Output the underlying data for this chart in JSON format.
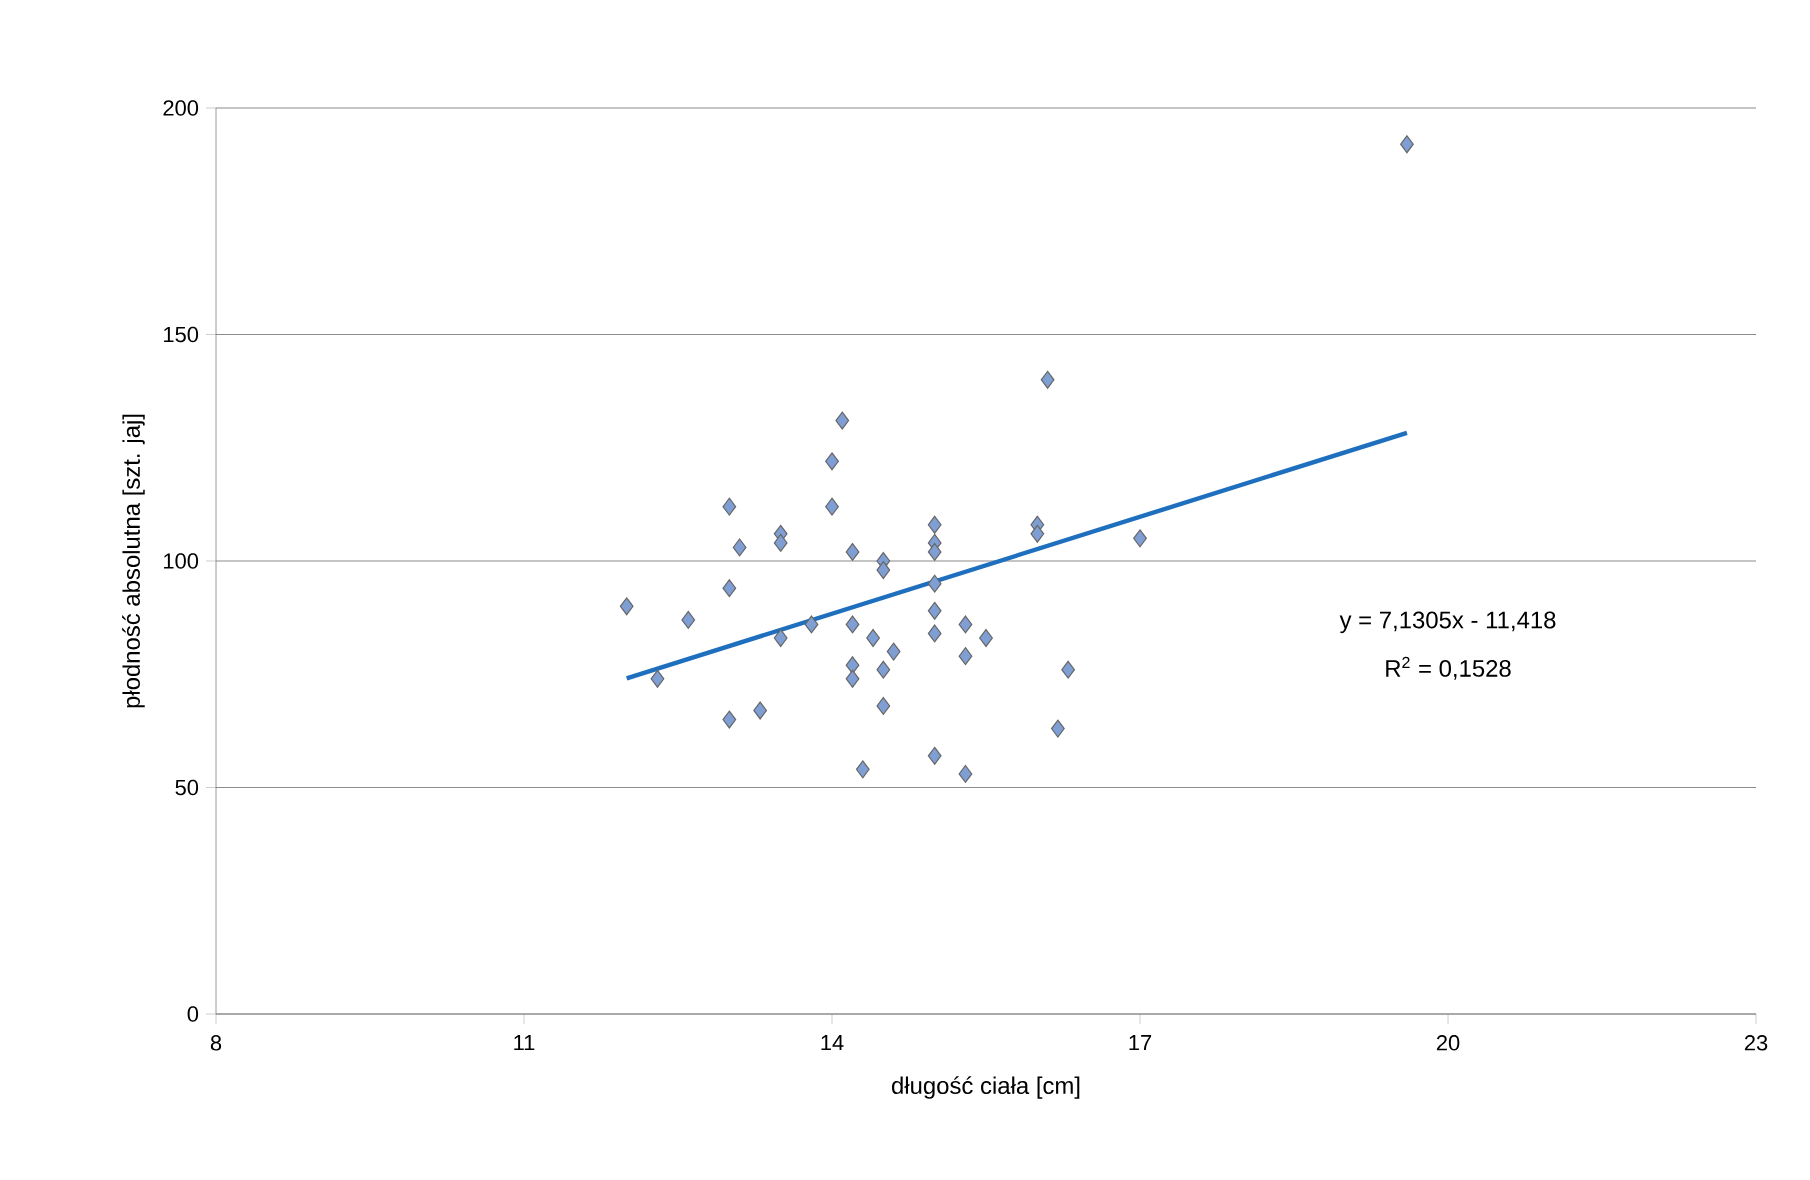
{
  "chart_data": {
    "type": "scatter",
    "xlabel": "długość ciała [cm]",
    "ylabel": "płodność absolutna [szt. jaj]",
    "xlim": [
      8,
      23
    ],
    "ylim": [
      0,
      200
    ],
    "xticks": [
      8,
      11,
      14,
      17,
      20,
      23
    ],
    "yticks": [
      0,
      50,
      100,
      150,
      200
    ],
    "grid": "y",
    "series": [
      {
        "marker": "diamond",
        "color": "#7f9fd4",
        "x": [
          12.0,
          12.3,
          12.6,
          13.0,
          13.0,
          13.0,
          13.1,
          13.3,
          13.5,
          13.5,
          13.5,
          13.8,
          14.0,
          14.0,
          14.1,
          14.2,
          14.2,
          14.2,
          14.2,
          14.3,
          14.4,
          14.5,
          14.5,
          14.5,
          14.5,
          14.6,
          15.0,
          15.0,
          15.0,
          15.0,
          15.0,
          15.0,
          15.0,
          15.3,
          15.3,
          15.3,
          15.5,
          16.0,
          16.0,
          16.1,
          16.2,
          16.3,
          17.0,
          19.6
        ],
        "values": [
          90,
          74,
          87,
          112,
          94,
          65,
          103,
          67,
          106,
          104,
          83,
          86,
          122,
          112,
          131,
          102,
          86,
          77,
          74,
          54,
          83,
          100,
          98,
          76,
          68,
          80,
          108,
          104,
          102,
          95,
          89,
          84,
          57,
          86,
          79,
          53,
          83,
          108,
          106,
          140,
          63,
          76,
          105,
          192
        ]
      },
      {
        "type": "line",
        "marker": "none",
        "color": "#1f6fbf",
        "x": [
          12,
          19.6
        ],
        "values": [
          74.1,
          128.3
        ]
      }
    ],
    "annotations": [
      "y = 7,1305x - 11,418",
      "R$^{2}$ = 0,1528"
    ]
  }
}
